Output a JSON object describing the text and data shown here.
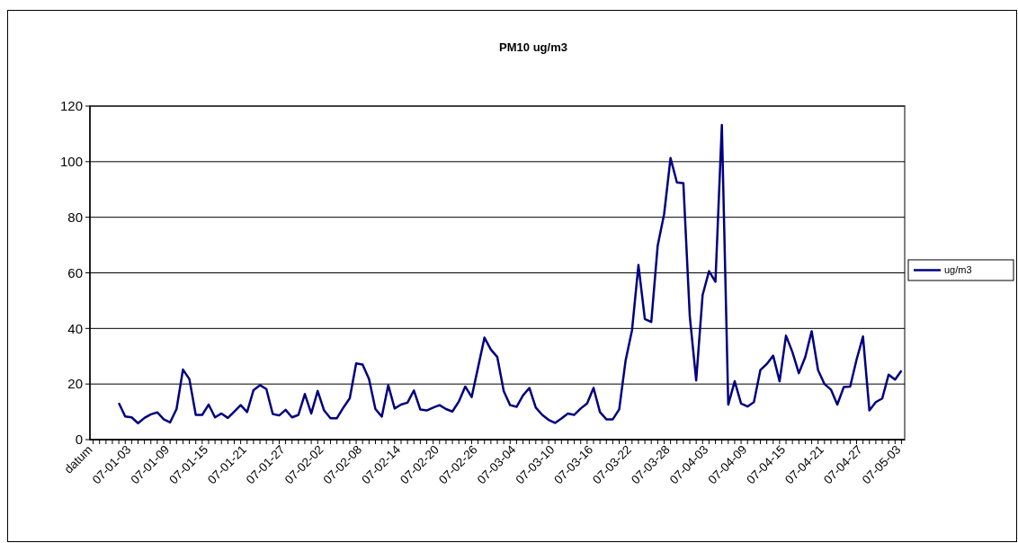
{
  "chart_data": {
    "type": "line",
    "title": "PM10 ug/m3",
    "categories": [
      "datum",
      null,
      null,
      null,
      null,
      null,
      "07-01-03",
      null,
      null,
      null,
      null,
      null,
      "07-01-09",
      null,
      null,
      null,
      null,
      null,
      "07-01-15",
      null,
      null,
      null,
      null,
      null,
      "07-01-21",
      null,
      null,
      null,
      null,
      null,
      "07-01-27",
      null,
      null,
      null,
      null,
      null,
      "07-02-02",
      null,
      null,
      null,
      null,
      null,
      "07-02-08",
      null,
      null,
      null,
      null,
      null,
      "07-02-14",
      null,
      null,
      null,
      null,
      null,
      "07-02-20",
      null,
      null,
      null,
      null,
      null,
      "07-02-26",
      null,
      null,
      null,
      null,
      null,
      "07-03-04",
      null,
      null,
      null,
      null,
      null,
      "07-03-10",
      null,
      null,
      null,
      null,
      null,
      "07-03-16",
      null,
      null,
      null,
      null,
      null,
      "07-03-22",
      null,
      null,
      null,
      null,
      null,
      "07-03-28",
      null,
      null,
      null,
      null,
      null,
      "07-04-03",
      null,
      null,
      null,
      null,
      null,
      "07-04-09",
      null,
      null,
      null,
      null,
      null,
      "07-04-15",
      null,
      null,
      null,
      null,
      null,
      "07-04-21",
      null,
      null,
      null,
      null,
      null,
      "07-04-27",
      null,
      null,
      null,
      null,
      null,
      "07-05-03"
    ],
    "series": [
      {
        "name": "ug/m3",
        "color": "#000080",
        "values": [
          null,
          null,
          null,
          null,
          13.2,
          8.3,
          8.0,
          5.9,
          7.8,
          9.1,
          9.8,
          7.3,
          6.2,
          11.0,
          25.2,
          21.8,
          8.9,
          8.9,
          12.6,
          8.0,
          9.4,
          7.8,
          10.1,
          12.4,
          9.9,
          17.8,
          19.6,
          18.2,
          9.2,
          8.7,
          10.7,
          8.0,
          8.9,
          16.4,
          9.4,
          17.5,
          10.5,
          7.7,
          7.7,
          11.5,
          14.9,
          27.4,
          27.0,
          21.8,
          11.0,
          8.3,
          19.6,
          11.2,
          12.6,
          13.3,
          17.7,
          10.8,
          10.5,
          11.5,
          12.4,
          11.0,
          10.1,
          13.7,
          19.1,
          15.3,
          26.0,
          36.7,
          32.4,
          29.7,
          17.5,
          12.4,
          11.8,
          15.9,
          18.6,
          11.5,
          8.9,
          7.1,
          6.0,
          7.6,
          9.4,
          8.9,
          11.2,
          13.0,
          18.6,
          9.9,
          7.3,
          7.3,
          10.9,
          28.5,
          39.4,
          62.8,
          43.4,
          42.3,
          69.8,
          81.1,
          101.3,
          92.5,
          92.3,
          44.4,
          21.3,
          52.0,
          60.6,
          56.8,
          113.2,
          12.6,
          21.0,
          13.0,
          11.9,
          13.5,
          25.0,
          27.2,
          30.2,
          21.0,
          37.4,
          31.5,
          23.9,
          29.7,
          39.0,
          25.0,
          20.0,
          18.0,
          12.6,
          18.9,
          19.1,
          28.8,
          37.1,
          10.5,
          13.5,
          14.8,
          23.4,
          21.6,
          24.8
        ]
      }
    ],
    "ylim": [
      0,
      120
    ],
    "yticks": [
      0,
      20,
      40,
      60,
      80,
      100,
      120
    ],
    "grid": "y",
    "legend": "right",
    "marker": "none",
    "line_style": "solid"
  }
}
